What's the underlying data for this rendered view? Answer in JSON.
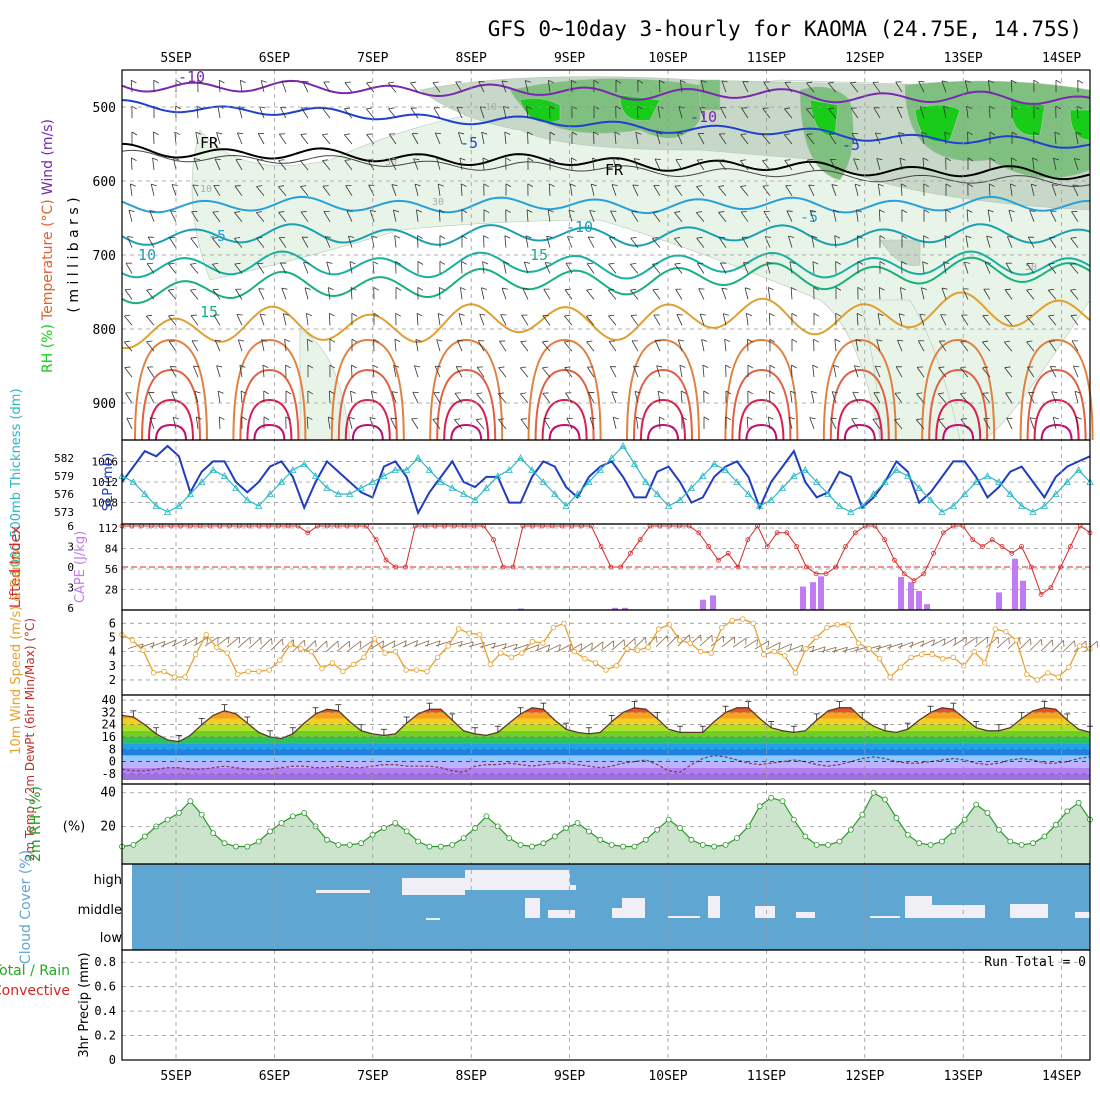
{
  "title": "GFS 0~10day 3-hourly for KAOMA (24.75E, 14.75S)",
  "dates": [
    "5SEP",
    "6SEP",
    "7SEP",
    "8SEP",
    "9SEP",
    "10SEP",
    "11SEP",
    "12SEP",
    "13SEP",
    "14SEP"
  ],
  "colors": {
    "frame": "#000000",
    "grid": "#999999",
    "rh_light": "#e8f4e8",
    "rh_mid": "#c8d8c8",
    "rh_dark": "#7fbf7f",
    "rh_green": "#19cc19",
    "wind_label": "#7b28b0",
    "temp_label": "#e06030",
    "thick": "#29b6c6",
    "slp": "#1f3dbf",
    "cape": "#c07cf0",
    "li": "#d62828",
    "wind10": "#e8a030",
    "rh2m": "#2a9a2a",
    "cloud": "#5fa6d2",
    "precip_total": "#22aa22",
    "precip_conv": "#dd2222"
  },
  "chart_data": [
    {
      "type": "heatmap",
      "name": "upper-air",
      "ylabel_parts": {
        "rh": "RH (%)",
        "temp": "Temperature (°C)",
        "wind": "Wind (m/s)",
        "unit": "( m i l l i b a r s )"
      },
      "yticks": [
        500,
        600,
        700,
        800,
        900
      ],
      "ylim": [
        950,
        450
      ],
      "contour_labels": [
        {
          "text": "-10",
          "color": "#7b28b0"
        },
        {
          "text": "-10",
          "color": "#7b28b0"
        },
        {
          "text": "-5",
          "color": "#2040d0"
        },
        {
          "text": "-5",
          "color": "#2040d0"
        },
        {
          "text": "-5",
          "color": "#29a0d8"
        },
        {
          "text": "-5",
          "color": "#29a0d8"
        },
        {
          "text": "FR",
          "color": "#000000"
        },
        {
          "text": "FR",
          "color": "#000000"
        },
        {
          "text": "-10",
          "color": "#1aa0b0"
        },
        {
          "text": "10",
          "color": "#1aa0b0"
        },
        {
          "text": "15",
          "color": "#18b080"
        },
        {
          "text": "15",
          "color": "#18b080"
        },
        {
          "text": "10",
          "color": "#aaaaaa"
        },
        {
          "text": "30",
          "color": "#aaaaaa"
        },
        {
          "text": "30",
          "color": "#aaaaaa"
        },
        {
          "text": "50",
          "color": "#aaaaaa"
        },
        {
          "text": "10",
          "color": "#aaaaaa"
        }
      ]
    },
    {
      "type": "line",
      "name": "thickness-slp",
      "ylabel_left": "1000-500mb Thickness (dm)",
      "ylabel_right": "SLP (mb)",
      "yticks_left": [
        573,
        576,
        579,
        582
      ],
      "yticks_right": [
        1008,
        1012,
        1016
      ],
      "series": [
        {
          "name": "SLP (mb)",
          "values": [
            1012,
            1015,
            1018,
            1017,
            1019,
            1017,
            1010,
            1014,
            1016,
            1016,
            1012,
            1010,
            1012,
            1015,
            1016,
            1013,
            1007,
            1012,
            1016,
            1014,
            1012,
            1010,
            1009,
            1015,
            1016,
            1013,
            1006,
            1010,
            1013,
            1016,
            1012,
            1011,
            1013,
            1013,
            1008,
            1008,
            1013,
            1016,
            1015,
            1011,
            1009,
            1013,
            1015,
            1016,
            1013,
            1009,
            1009,
            1014,
            1015,
            1012,
            1008,
            1009,
            1013,
            1015,
            1016,
            1013,
            1007,
            1012,
            1015,
            1018,
            1012,
            1009,
            1010,
            1014,
            1013,
            1007,
            1009,
            1012,
            1016,
            1014,
            1008,
            1010,
            1013,
            1016,
            1016,
            1013,
            1009,
            1011,
            1014,
            1015,
            1012,
            1009,
            1013,
            1015,
            1016,
            1017
          ]
        },
        {
          "name": "1000-500mb Thickness (dm)",
          "values": [
            579,
            578,
            576,
            574,
            573,
            574,
            576,
            578,
            580,
            579,
            577,
            575,
            574,
            576,
            578,
            580,
            581,
            579,
            577,
            576,
            576,
            577,
            578,
            579,
            580,
            580,
            582,
            580,
            578,
            577,
            576,
            575,
            577,
            579,
            580,
            582,
            580,
            578,
            576,
            574,
            576,
            578,
            580,
            582,
            584,
            581,
            578,
            576,
            574,
            575,
            577,
            579,
            581,
            580,
            578,
            576,
            574,
            575,
            577,
            579,
            580,
            578,
            576,
            574,
            573,
            574,
            576,
            578,
            580,
            579,
            577,
            575,
            573,
            574,
            576,
            578,
            579,
            578,
            576,
            574,
            573,
            574,
            576,
            578,
            580,
            578
          ]
        }
      ]
    },
    {
      "type": "bar",
      "name": "cape-li",
      "ylabel_left": "Lifted Index",
      "ylabel_right": "CAPE (J/kg)",
      "yticks_left": [
        -6,
        -3,
        0,
        3,
        6
      ],
      "yticks_right": [
        28,
        56,
        84,
        112
      ],
      "li_values": [
        6,
        6,
        6,
        6,
        6,
        6,
        6,
        6,
        6,
        6,
        6,
        6,
        6,
        6,
        6,
        6,
        6,
        6,
        6,
        5,
        6,
        6,
        6,
        6,
        6,
        6,
        4,
        1,
        0,
        0,
        6,
        6,
        6,
        6,
        6,
        6,
        6,
        6,
        4,
        0,
        0,
        6,
        6,
        6,
        6,
        6,
        6,
        6,
        6,
        3,
        0,
        0,
        2,
        4,
        6,
        6,
        6,
        6,
        6,
        5,
        3,
        1,
        2,
        0,
        4,
        6,
        3,
        5,
        5,
        3,
        0,
        -1,
        -1,
        0,
        3,
        5,
        6,
        6,
        4,
        1,
        -1,
        -2,
        -1,
        2,
        5,
        6,
        6,
        4,
        3,
        4,
        3,
        2,
        3,
        0,
        -4,
        -3,
        0,
        3,
        6,
        5
      ],
      "cape_values": [
        0,
        0,
        0,
        0,
        0,
        0,
        0,
        0,
        0,
        0,
        0,
        0,
        0,
        0,
        0,
        0,
        0,
        0,
        0,
        0,
        0,
        0,
        0,
        0,
        0,
        0,
        0,
        0,
        0,
        0,
        0,
        0,
        0,
        0,
        0,
        0,
        0,
        0,
        0,
        0,
        0,
        0,
        0,
        2,
        0,
        0,
        0,
        0,
        0,
        0,
        0,
        0,
        0,
        0,
        0,
        0,
        0,
        0,
        0,
        0,
        0,
        0,
        4,
        4,
        0,
        0,
        0,
        0,
        0,
        0,
        0,
        0,
        0,
        0,
        0,
        0,
        0,
        0,
        0,
        0,
        0,
        0,
        0,
        0,
        0,
        14,
        20,
        0,
        0,
        0,
        0,
        0,
        0,
        0,
        0,
        0,
        0,
        0,
        0,
        0
      ],
      "cape_spikes": [
        {
          "label": "10SEP",
          "values": [
            14,
            20
          ]
        },
        {
          "label": "11SEP",
          "values": [
            26,
            38,
            46,
            44
          ]
        },
        {
          "label": "12SEP",
          "values": [
            47,
            38,
            26,
            8
          ]
        },
        {
          "label": "13SEP",
          "values": [
            26,
            62,
            38
          ]
        }
      ]
    },
    {
      "type": "line",
      "name": "wind10m",
      "ylabel": "10m Wind Speed (m/s) & Barbs",
      "yticks": [
        2,
        3,
        4,
        5,
        6
      ],
      "ylim": [
        2,
        6
      ],
      "values": [
        5.2,
        4.8,
        4.1,
        2.5,
        2.6,
        2.2,
        2.2,
        3.8,
        5.2,
        4.3,
        3.9,
        2.4,
        2.6,
        2.6,
        2.7,
        3.4,
        4.5,
        4.2,
        4.0,
        2.8,
        3.2,
        2.6,
        3.1,
        3.6,
        4.9,
        3.9,
        4.0,
        2.7,
        2.7,
        2.6,
        3.6,
        4.4,
        5.6,
        5.3,
        5.2,
        3.1,
        3.9,
        3.6,
        3.9,
        4.7,
        4.6,
        5.7,
        6.0,
        4.0,
        3.5,
        3.2,
        2.7,
        3.0,
        4.2,
        4.1,
        4.3,
        5.6,
        5.9,
        4.8,
        4.6,
        4.0,
        3.9,
        5.7,
        6.2,
        6.3,
        6.0,
        3.8,
        4.0,
        3.7,
        2.5,
        4.2,
        5.0,
        5.7,
        5.9,
        5.9,
        4.6,
        4.2,
        3.5,
        2.2,
        2.9,
        3.6,
        3.8,
        3.8,
        3.5,
        3.6,
        3.0,
        4.0,
        3.2,
        5.6,
        5.4,
        4.8,
        2.4,
        2.0,
        2.5,
        2.2,
        2.9,
        4.4,
        4.2
      ]
    },
    {
      "type": "area",
      "name": "temp2m",
      "ylabel": "2m Temp / 2m DewPt (6hr Min/Max) (°C)",
      "yticks": [
        -8,
        0,
        8,
        16,
        24,
        32,
        40
      ],
      "ylim": [
        -12,
        40
      ],
      "temp": [
        30,
        29,
        24,
        18,
        14,
        13,
        17,
        24,
        30,
        33,
        31,
        25,
        19,
        16,
        15,
        18,
        25,
        31,
        34,
        33,
        26,
        20,
        18,
        17,
        18,
        25,
        31,
        34,
        34,
        27,
        20,
        18,
        17,
        19,
        25,
        31,
        35,
        34,
        27,
        21,
        19,
        18,
        19,
        26,
        32,
        35,
        34,
        28,
        21,
        19,
        19,
        19,
        26,
        32,
        35,
        35,
        28,
        22,
        20,
        19,
        20,
        27,
        33,
        35,
        35,
        28,
        23,
        20,
        19,
        21,
        27,
        32,
        35,
        34,
        28,
        22,
        20,
        20,
        22,
        28,
        33,
        35,
        34,
        27,
        21,
        19
      ],
      "dewpt": [
        -5,
        -6,
        -6,
        -5,
        -4,
        -4,
        -5,
        -5,
        -4,
        -3,
        -4,
        -5,
        -5,
        -5,
        -4,
        -3,
        -3,
        -4,
        -4,
        -3,
        -4,
        -4,
        -3,
        -2,
        -2,
        -3,
        -3,
        -3,
        -4,
        -6,
        -7,
        -3,
        -2,
        -2,
        -1,
        -2,
        -3,
        -2,
        -1,
        -1,
        -2,
        -3,
        -4,
        -3,
        -1,
        0,
        1,
        -2,
        -6,
        -7,
        -2,
        2,
        4,
        3,
        1,
        -1,
        -2,
        -1,
        0,
        1,
        0,
        -2,
        -3,
        -2,
        0,
        2,
        3,
        2,
        0,
        -1,
        -1,
        0,
        1,
        2,
        1,
        -1,
        -2,
        -1,
        1,
        2,
        1,
        -1,
        -1,
        0,
        2,
        3
      ]
    },
    {
      "type": "area",
      "name": "rh2m",
      "ylabel": "2m RH (%)",
      "yticks": [
        20,
        40
      ],
      "ylim": [
        0,
        42
      ],
      "values": [
        8,
        9,
        14,
        20,
        24,
        28,
        35,
        27,
        16,
        10,
        8,
        8,
        11,
        17,
        22,
        26,
        28,
        20,
        12,
        9,
        9,
        10,
        15,
        19,
        22,
        17,
        11,
        8,
        8,
        9,
        13,
        19,
        26,
        20,
        13,
        9,
        8,
        10,
        14,
        19,
        22,
        17,
        12,
        9,
        8,
        8,
        12,
        18,
        24,
        19,
        12,
        9,
        8,
        9,
        13,
        20,
        32,
        37,
        35,
        24,
        14,
        9,
        9,
        11,
        18,
        27,
        40,
        36,
        25,
        15,
        10,
        9,
        11,
        17,
        24,
        33,
        28,
        18,
        11,
        9,
        10,
        14,
        21,
        29,
        34,
        24
      ]
    },
    {
      "type": "heatmap",
      "name": "cloud-cover",
      "ylabel": "Cloud Cover (%)",
      "level_labels": [
        "high",
        "middle",
        "low"
      ]
    },
    {
      "type": "bar",
      "name": "precip",
      "ylabel_parts": {
        "total": "Total / Rain",
        "conv": "Convective",
        "unit": "3hr Precip (mm)"
      },
      "yticks": [
        0,
        0.2,
        0.4,
        0.6,
        0.8
      ],
      "ylim": [
        0,
        0.9
      ],
      "run_total": "Run Total = 0",
      "values": []
    }
  ]
}
